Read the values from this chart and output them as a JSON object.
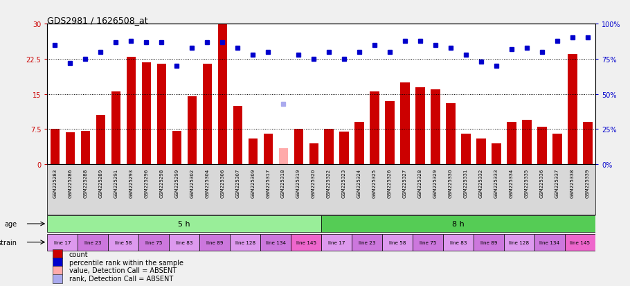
{
  "title": "GDS2981 / 1626508_at",
  "samples": [
    "GSM225283",
    "GSM225286",
    "GSM225288",
    "GSM225289",
    "GSM225291",
    "GSM225293",
    "GSM225296",
    "GSM225298",
    "GSM225299",
    "GSM225302",
    "GSM225304",
    "GSM225306",
    "GSM225307",
    "GSM225309",
    "GSM225317",
    "GSM225318",
    "GSM225319",
    "GSM225320",
    "GSM225322",
    "GSM225323",
    "GSM225324",
    "GSM225325",
    "GSM225326",
    "GSM225327",
    "GSM225328",
    "GSM225329",
    "GSM225330",
    "GSM225331",
    "GSM225332",
    "GSM225333",
    "GSM225334",
    "GSM225335",
    "GSM225336",
    "GSM225337",
    "GSM225338",
    "GSM225339"
  ],
  "bar_values": [
    7.5,
    6.8,
    7.2,
    10.5,
    15.5,
    23.0,
    21.8,
    21.5,
    7.2,
    14.5,
    21.5,
    30.0,
    12.5,
    5.5,
    6.5,
    3.5,
    7.5,
    4.5,
    7.5,
    7.0,
    9.0,
    15.5,
    13.5,
    17.5,
    16.5,
    16.0,
    13.0,
    6.5,
    5.5,
    4.5,
    9.0,
    9.5,
    8.0,
    6.5,
    23.5,
    9.0
  ],
  "absent_bars": [
    15
  ],
  "percentile_values": [
    85,
    72,
    75,
    80,
    87,
    88,
    87,
    87,
    70,
    83,
    87,
    87,
    83,
    78,
    80,
    43,
    78,
    75,
    80,
    75,
    80,
    85,
    80,
    88,
    88,
    85,
    83,
    78,
    73,
    70,
    82,
    83,
    80,
    88,
    90,
    90
  ],
  "absent_rank": [
    15
  ],
  "bar_color": "#cc0000",
  "bar_absent_color": "#ffaaaa",
  "dot_color": "#0000cc",
  "dot_absent_color": "#aaaaee",
  "ylim_left": [
    0,
    30
  ],
  "ylim_right": [
    0,
    100
  ],
  "yticks_left": [
    0,
    7.5,
    15,
    22.5,
    30
  ],
  "yticks_right": [
    0,
    25,
    50,
    75,
    100
  ],
  "ytick_labels_left": [
    "0",
    "7.5",
    "15",
    "22.5",
    "30"
  ],
  "ytick_labels_right": [
    "0%",
    "25%",
    "50%",
    "75%",
    "100%"
  ],
  "hlines": [
    7.5,
    15.0,
    22.5
  ],
  "age_groups": [
    {
      "label": "5 h",
      "start": 0,
      "end": 18,
      "color": "#99ee99"
    },
    {
      "label": "8 h",
      "start": 18,
      "end": 36,
      "color": "#55cc55"
    }
  ],
  "strain_groups": [
    {
      "label": "line 17",
      "start": 0,
      "end": 2,
      "color": "#dd99ee"
    },
    {
      "label": "line 23",
      "start": 2,
      "end": 4,
      "color": "#cc77dd"
    },
    {
      "label": "line 58",
      "start": 4,
      "end": 6,
      "color": "#dd99ee"
    },
    {
      "label": "line 75",
      "start": 6,
      "end": 8,
      "color": "#cc77dd"
    },
    {
      "label": "line 83",
      "start": 8,
      "end": 10,
      "color": "#dd99ee"
    },
    {
      "label": "line 89",
      "start": 10,
      "end": 12,
      "color": "#cc77dd"
    },
    {
      "label": "line 128",
      "start": 12,
      "end": 14,
      "color": "#dd99ee"
    },
    {
      "label": "line 134",
      "start": 14,
      "end": 16,
      "color": "#cc77dd"
    },
    {
      "label": "line 145",
      "start": 16,
      "end": 18,
      "color": "#ee66cc"
    },
    {
      "label": "line 17",
      "start": 18,
      "end": 20,
      "color": "#dd99ee"
    },
    {
      "label": "line 23",
      "start": 20,
      "end": 22,
      "color": "#cc77dd"
    },
    {
      "label": "line 58",
      "start": 22,
      "end": 24,
      "color": "#dd99ee"
    },
    {
      "label": "line 75",
      "start": 24,
      "end": 26,
      "color": "#cc77dd"
    },
    {
      "label": "line 83",
      "start": 26,
      "end": 28,
      "color": "#dd99ee"
    },
    {
      "label": "line 89",
      "start": 28,
      "end": 30,
      "color": "#cc77dd"
    },
    {
      "label": "line 128",
      "start": 30,
      "end": 32,
      "color": "#dd99ee"
    },
    {
      "label": "line 134",
      "start": 32,
      "end": 34,
      "color": "#cc77dd"
    },
    {
      "label": "line 145",
      "start": 34,
      "end": 36,
      "color": "#ee66cc"
    }
  ],
  "legend_items": [
    {
      "label": "count",
      "color": "#cc0000"
    },
    {
      "label": "percentile rank within the sample",
      "color": "#0000cc"
    },
    {
      "label": "value, Detection Call = ABSENT",
      "color": "#ffaaaa"
    },
    {
      "label": "rank, Detection Call = ABSENT",
      "color": "#aaaaee"
    }
  ],
  "bg_color": "#f0f0f0",
  "plot_bg_color": "#ffffff",
  "xtick_bg_color": "#d8d8d8"
}
